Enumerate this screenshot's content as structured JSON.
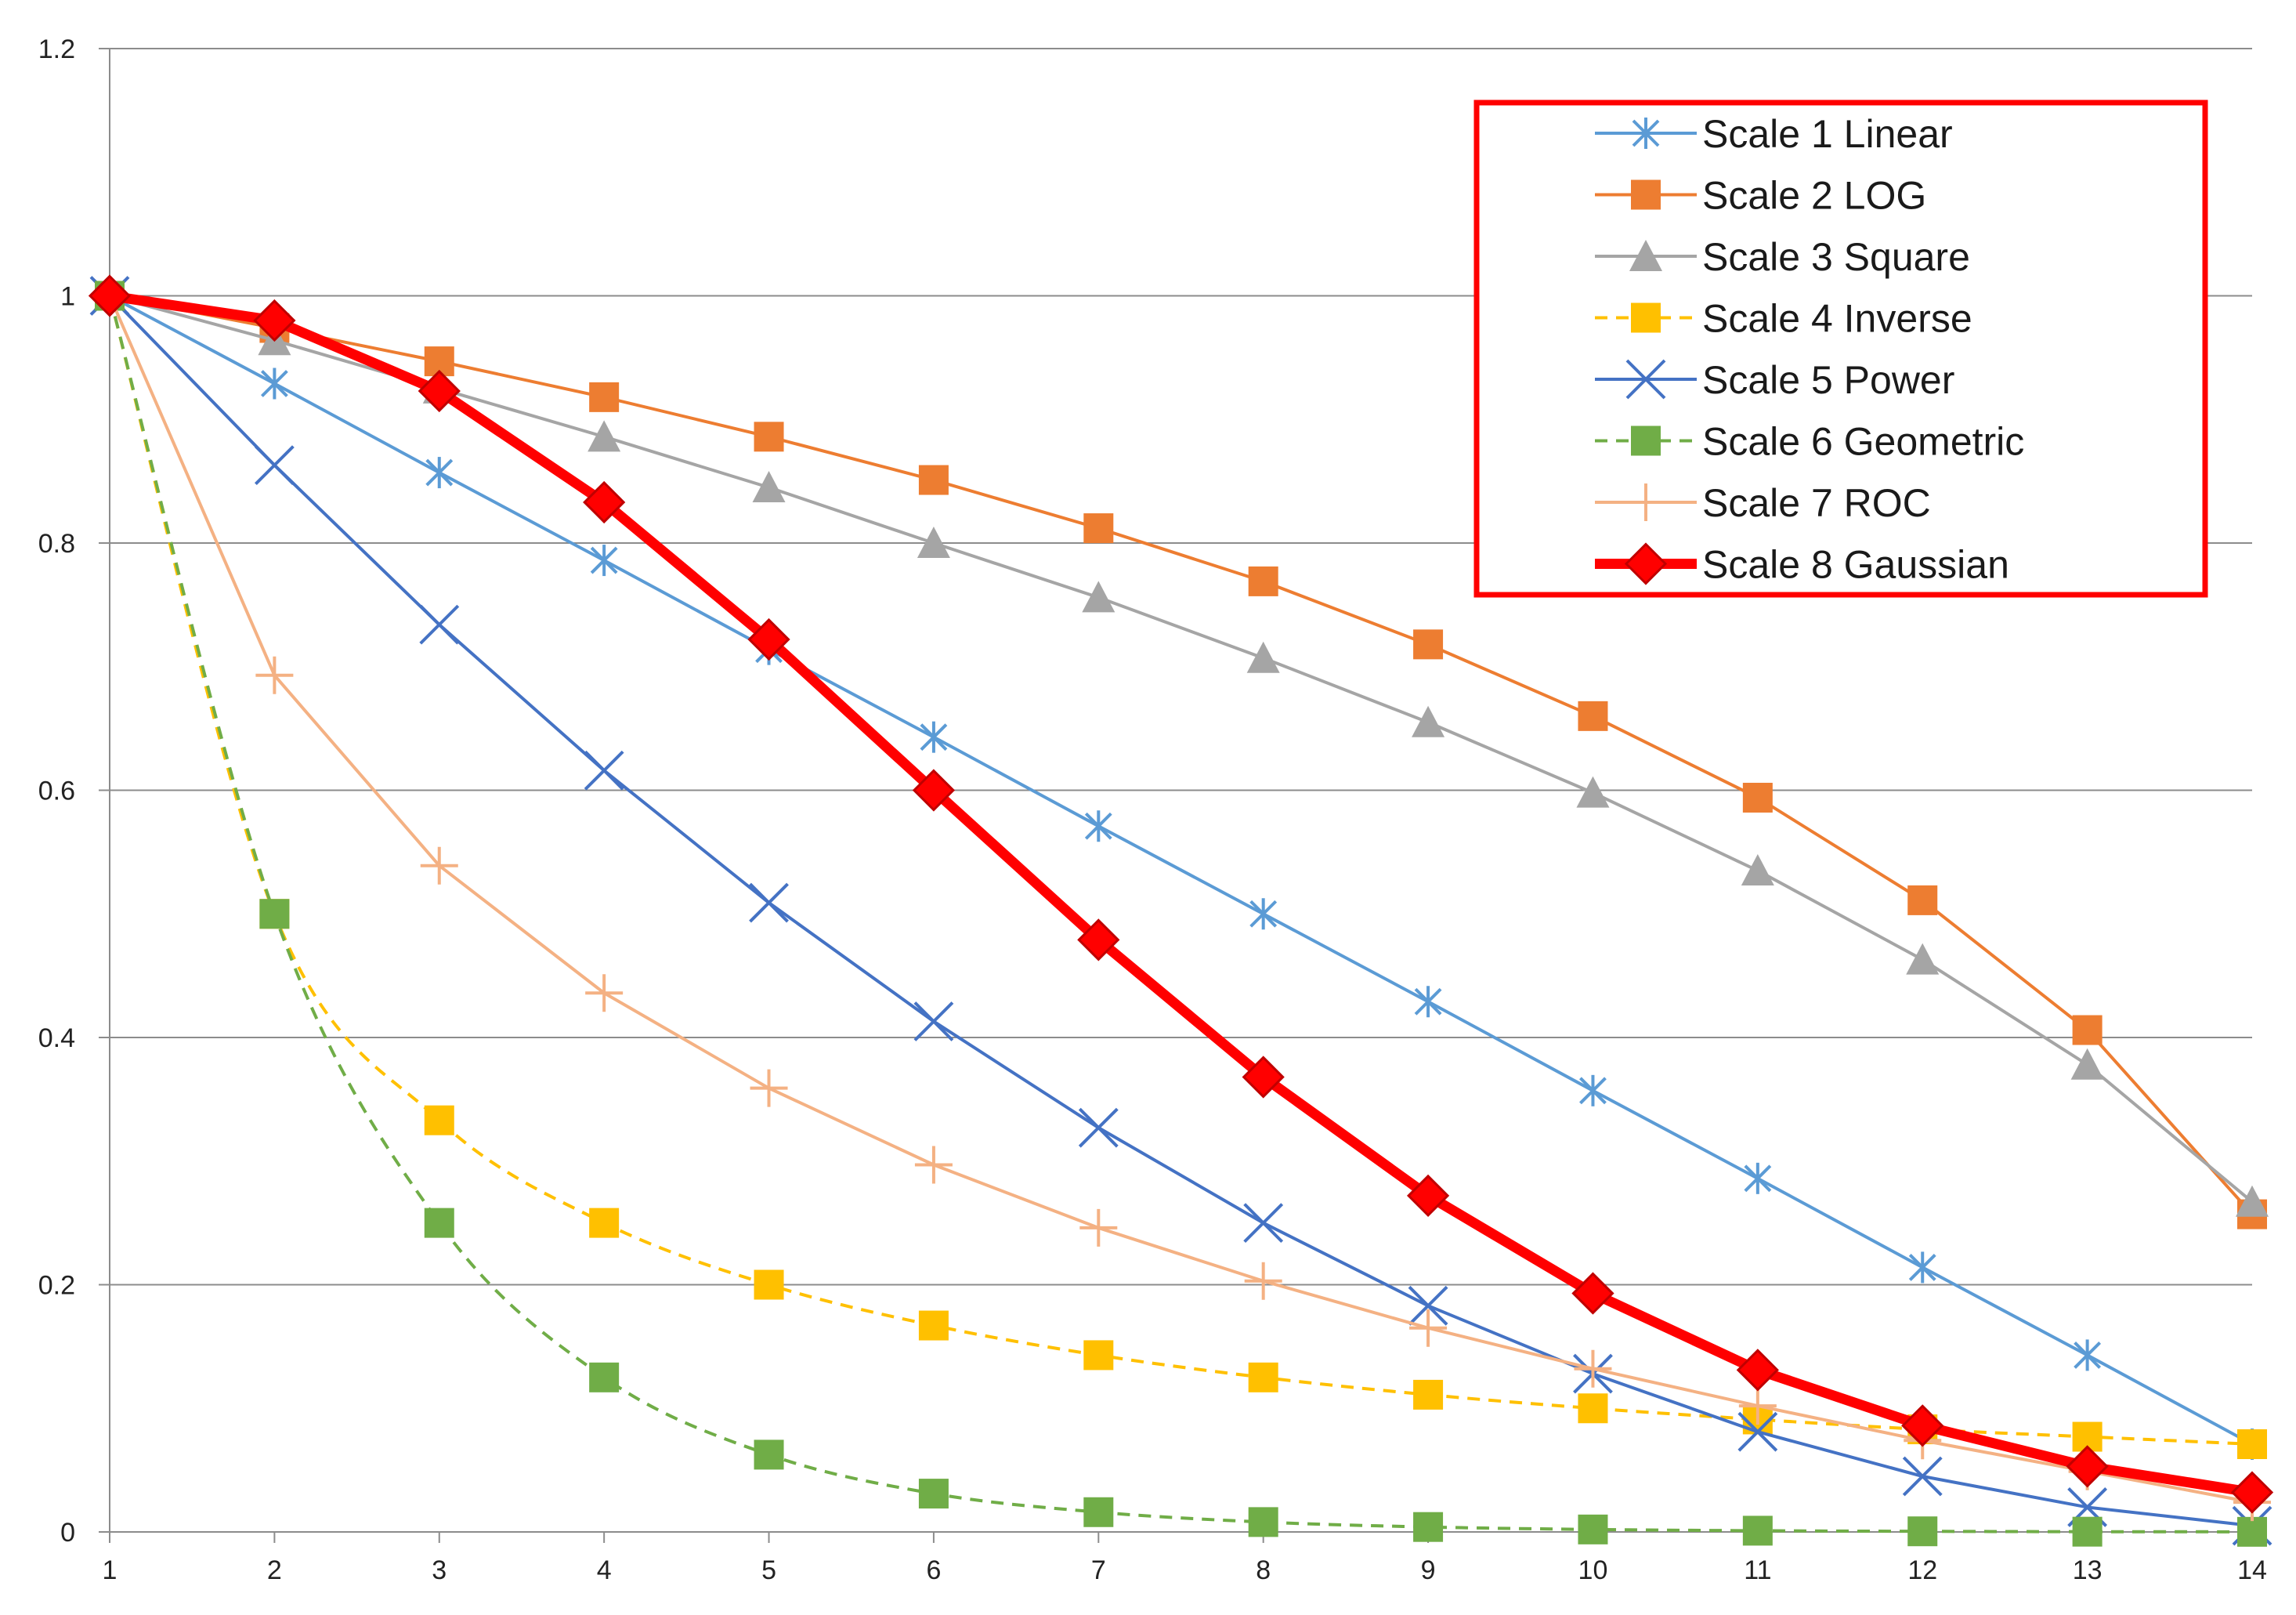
{
  "chart_data": {
    "type": "line",
    "title": "",
    "xlabel": "",
    "ylabel": "",
    "x": [
      1,
      2,
      3,
      4,
      5,
      6,
      7,
      8,
      9,
      10,
      11,
      12,
      13,
      14
    ],
    "xlim": [
      1,
      14
    ],
    "ylim": [
      0,
      1.2
    ],
    "yticks": [
      "0",
      "0.2",
      "0.4",
      "0.6",
      "0.8",
      "1",
      "1.2"
    ],
    "xticks": [
      "1",
      "2",
      "3",
      "4",
      "5",
      "6",
      "7",
      "8",
      "9",
      "10",
      "11",
      "12",
      "13",
      "14"
    ],
    "grid": "horizontal",
    "legend_position": "top-right",
    "series": [
      {
        "name": "Scale 1 Linear",
        "color": "#5b9bd5",
        "marker": "asterisk",
        "dashed": false,
        "values": [
          1.0,
          0.929,
          0.857,
          0.786,
          0.714,
          0.643,
          0.571,
          0.5,
          0.429,
          0.357,
          0.286,
          0.214,
          0.143,
          0.071
        ]
      },
      {
        "name": "Scale 2 LOG",
        "color": "#ed7d31",
        "marker": "square",
        "dashed": false,
        "values": [
          1.0,
          0.974,
          0.947,
          0.918,
          0.886,
          0.851,
          0.812,
          0.769,
          0.718,
          0.66,
          0.594,
          0.511,
          0.406,
          0.257
        ]
      },
      {
        "name": "Scale 3 Square",
        "color": "#a5a5a5",
        "marker": "triangle",
        "dashed": false,
        "values": [
          1.0,
          0.964,
          0.925,
          0.886,
          0.845,
          0.8,
          0.756,
          0.707,
          0.655,
          0.598,
          0.535,
          0.463,
          0.378,
          0.267
        ]
      },
      {
        "name": "Scale 4 Inverse",
        "color": "#ffc000",
        "marker": "square",
        "dashed": true,
        "values": [
          1.0,
          0.5,
          0.333,
          0.25,
          0.2,
          0.167,
          0.143,
          0.125,
          0.111,
          0.1,
          0.091,
          0.083,
          0.077,
          0.071
        ]
      },
      {
        "name": "Scale 5 Power",
        "color": "#4472c4",
        "marker": "x",
        "dashed": false,
        "values": [
          1.0,
          0.863,
          0.734,
          0.616,
          0.509,
          0.413,
          0.327,
          0.25,
          0.183,
          0.128,
          0.081,
          0.045,
          0.02,
          0.005
        ]
      },
      {
        "name": "Scale 6 Geometric",
        "color": "#70ad47",
        "marker": "square",
        "dashed": true,
        "values": [
          1.0,
          0.5,
          0.25,
          0.125,
          0.0625,
          0.031,
          0.016,
          0.008,
          0.004,
          0.002,
          0.001,
          0.0005,
          0.0002,
          0.0001
        ]
      },
      {
        "name": "Scale 7 ROC",
        "color": "#f4b183",
        "marker": "plus",
        "dashed": false,
        "values": [
          1.0,
          0.693,
          0.539,
          0.436,
          0.359,
          0.297,
          0.246,
          0.203,
          0.165,
          0.132,
          0.102,
          0.074,
          0.049,
          0.024
        ]
      },
      {
        "name": "Scale 8 Gaussian",
        "color": "#ff0000",
        "marker": "diamond",
        "dashed": false,
        "bold": true,
        "values": [
          1.0,
          0.98,
          0.923,
          0.833,
          0.722,
          0.6,
          0.479,
          0.368,
          0.272,
          0.193,
          0.131,
          0.086,
          0.053,
          0.032
        ]
      }
    ]
  }
}
